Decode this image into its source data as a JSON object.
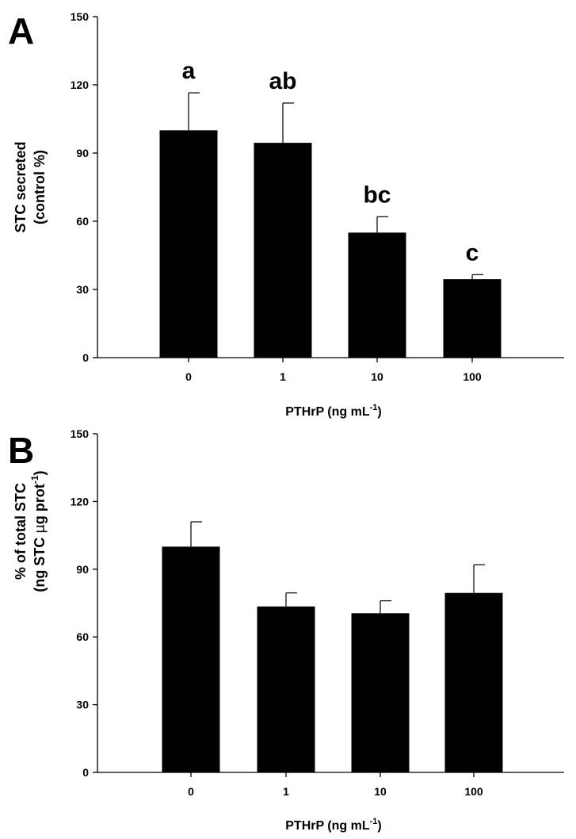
{
  "chart_data": [
    {
      "type": "bar",
      "panel_label": "A",
      "categories": [
        "0",
        "1",
        "10",
        "100"
      ],
      "values": [
        100,
        94.5,
        55,
        34.5
      ],
      "errors": [
        16.5,
        17.5,
        7,
        2
      ],
      "significance_letters": [
        "a",
        "ab",
        "bc",
        "c"
      ],
      "xlabel": "PTHrP (ng mL",
      "xlabel_sup": "-1",
      "xlabel_end": ")",
      "ylabel_line1": "STC secreted",
      "ylabel_line2": "(control %)",
      "ylim": [
        0,
        150
      ],
      "yticks": [
        0,
        30,
        60,
        90,
        120,
        150
      ],
      "bar_color": "#000000"
    },
    {
      "type": "bar",
      "panel_label": "B",
      "categories": [
        "0",
        "1",
        "10",
        "100"
      ],
      "values": [
        100,
        73.5,
        70.5,
        79.5
      ],
      "errors": [
        11,
        6,
        5.5,
        12.5
      ],
      "significance_letters": [
        "",
        "",
        "",
        ""
      ],
      "xlabel": "PTHrP (ng mL",
      "xlabel_sup": "-1",
      "xlabel_end": ")",
      "ylabel_line1": "% of total STC",
      "ylabel_line2a": "(ng STC ",
      "ylabel_mu": "μ",
      "ylabel_line2b": "g prot",
      "ylabel_sup": "-1",
      "ylabel_line2c": ")",
      "ylim": [
        0,
        150
      ],
      "yticks": [
        0,
        30,
        60,
        90,
        120,
        150
      ],
      "bar_color": "#000000"
    }
  ]
}
